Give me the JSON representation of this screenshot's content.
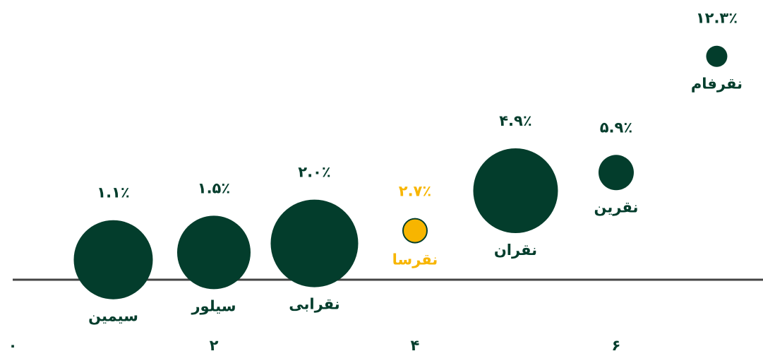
{
  "chart_data": {
    "type": "bubble",
    "categories": [
      "سیمین",
      "سیلور",
      "نقرابی",
      "نقرسا",
      "نقران",
      "نقرین",
      "نقرفام"
    ],
    "x": [
      1,
      2,
      3,
      4,
      5,
      6,
      7
    ],
    "values": [
      1.1,
      1.5,
      2.0,
      2.7,
      4.9,
      5.9,
      12.3
    ],
    "value_labels": [
      "۱.۱٪",
      "۱.۵٪",
      "۲.۰٪",
      "۲.۷٪",
      "۴.۹٪",
      "۵.۹٪",
      "۱۲.۳٪"
    ],
    "sizes": [
      56,
      52,
      62,
      17,
      60,
      25,
      15
    ],
    "colors": [
      "#033d2c",
      "#033d2c",
      "#033d2c",
      "#f7b500",
      "#033d2c",
      "#033d2c",
      "#033d2c"
    ],
    "xlim": [
      0,
      7.46
    ],
    "xticks": [
      {
        "value": 0,
        "label": "۰"
      },
      {
        "value": 2,
        "label": "۲"
      },
      {
        "value": 4,
        "label": "۴"
      },
      {
        "value": 6,
        "label": "۶"
      }
    ],
    "ylim": [
      0,
      15.4
    ]
  }
}
